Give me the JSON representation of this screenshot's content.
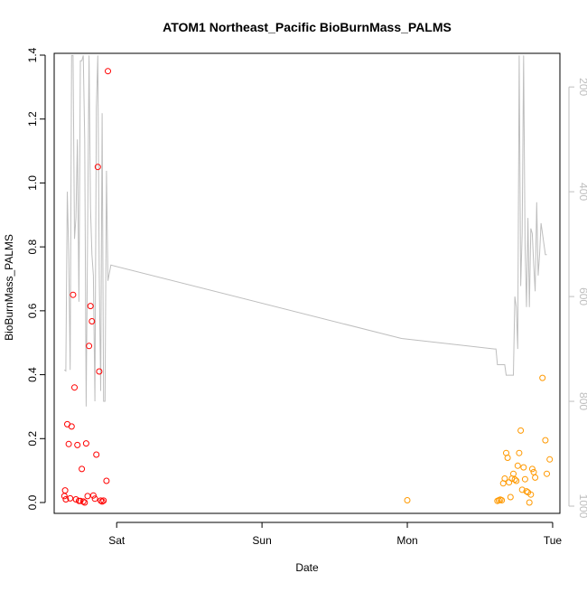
{
  "chart_data": {
    "type": "scatter",
    "title": "ATOM1 Northeast_Pacific BioBurnMass_PALMS",
    "xlabel": "Date",
    "ylabel": "BioBurnMass_PALMS",
    "x_ticks": [
      "Sat",
      "Sun",
      "Mon",
      "Tue"
    ],
    "xlim_days": [
      -0.43,
      3.05
    ],
    "ylim": [
      0,
      1.4
    ],
    "y_ticks": [
      0.0,
      0.2,
      0.4,
      0.6,
      0.8,
      1.0,
      1.2,
      1.4
    ],
    "y2_label_direction": "reversed",
    "y2_ticks": [
      200,
      400,
      600,
      800,
      1000
    ],
    "y2lim": [
      1000,
      160
    ],
    "colors": {
      "series_a": "#ff0000",
      "series_b": "#ff9900",
      "altitude_line": "#bebebe"
    },
    "series": [
      {
        "marker": "circle",
        "color": "#ff0000",
        "points": [
          [
            -0.36,
            0.02
          ],
          [
            -0.355,
            0.038
          ],
          [
            -0.35,
            0.01
          ],
          [
            -0.34,
            0.245
          ],
          [
            -0.33,
            0.183
          ],
          [
            -0.32,
            0.013
          ],
          [
            -0.31,
            0.238
          ],
          [
            -0.3,
            0.65
          ],
          [
            -0.29,
            0.36
          ],
          [
            -0.28,
            0.01
          ],
          [
            -0.27,
            0.18
          ],
          [
            -0.26,
            0.005
          ],
          [
            -0.25,
            0.005
          ],
          [
            -0.24,
            0.105
          ],
          [
            -0.23,
            0.003
          ],
          [
            -0.22,
            0.0
          ],
          [
            -0.21,
            0.185
          ],
          [
            -0.2,
            0.02
          ],
          [
            -0.19,
            0.49
          ],
          [
            -0.18,
            0.615
          ],
          [
            -0.17,
            0.567
          ],
          [
            -0.16,
            0.022
          ],
          [
            -0.15,
            0.012
          ],
          [
            -0.14,
            0.15
          ],
          [
            -0.13,
            1.05
          ],
          [
            -0.12,
            0.41
          ],
          [
            -0.11,
            0.006
          ],
          [
            -0.1,
            0.003
          ],
          [
            -0.09,
            0.006
          ],
          [
            -0.07,
            0.068
          ],
          [
            -0.06,
            1.35
          ]
        ]
      },
      {
        "marker": "circle",
        "color": "#ff9900",
        "points": [
          [
            2.0,
            0.007
          ],
          [
            2.62,
            0.005
          ],
          [
            2.63,
            0.007
          ],
          [
            2.64,
            0.009
          ],
          [
            2.65,
            0.007
          ],
          [
            2.66,
            0.06
          ],
          [
            2.67,
            0.075
          ],
          [
            2.68,
            0.155
          ],
          [
            2.69,
            0.14
          ],
          [
            2.7,
            0.063
          ],
          [
            2.71,
            0.017
          ],
          [
            2.72,
            0.075
          ],
          [
            2.73,
            0.09
          ],
          [
            2.74,
            0.072
          ],
          [
            2.75,
            0.068
          ],
          [
            2.76,
            0.115
          ],
          [
            2.77,
            0.155
          ],
          [
            2.78,
            0.225
          ],
          [
            2.79,
            0.04
          ],
          [
            2.8,
            0.11
          ],
          [
            2.81,
            0.073
          ],
          [
            2.82,
            0.035
          ],
          [
            2.83,
            0.032
          ],
          [
            2.84,
            0.0
          ],
          [
            2.85,
            0.025
          ],
          [
            2.86,
            0.105
          ],
          [
            2.87,
            0.095
          ],
          [
            2.88,
            0.078
          ],
          [
            2.93,
            0.39
          ],
          [
            2.95,
            0.195
          ],
          [
            2.96,
            0.09
          ],
          [
            2.98,
            0.135
          ]
        ]
      }
    ],
    "altitude_line": {
      "axis": "y2",
      "points": [
        [
          -0.36,
          740
        ],
        [
          -0.35,
          742
        ],
        [
          -0.34,
          400
        ],
        [
          -0.33,
          520
        ],
        [
          -0.32,
          740
        ],
        [
          -0.31,
          140
        ],
        [
          -0.3,
          140
        ],
        [
          -0.29,
          490
        ],
        [
          -0.28,
          450
        ],
        [
          -0.27,
          300
        ],
        [
          -0.26,
          610
        ],
        [
          -0.25,
          150
        ],
        [
          -0.24,
          150
        ],
        [
          -0.23,
          140
        ],
        [
          -0.22,
          300
        ],
        [
          -0.21,
          810
        ],
        [
          -0.2,
          480
        ],
        [
          -0.19,
          140
        ],
        [
          -0.18,
          430
        ],
        [
          -0.17,
          520
        ],
        [
          -0.16,
          560
        ],
        [
          -0.15,
          800
        ],
        [
          -0.14,
          240
        ],
        [
          -0.13,
          140
        ],
        [
          -0.12,
          560
        ],
        [
          -0.11,
          780
        ],
        [
          -0.1,
          250
        ],
        [
          -0.09,
          800
        ],
        [
          -0.08,
          800
        ],
        [
          -0.07,
          360
        ],
        [
          -0.06,
          570
        ],
        [
          -0.04,
          540
        ],
        [
          1.96,
          680
        ],
        [
          2.6,
          700
        ],
        [
          2.61,
          700
        ],
        [
          2.62,
          730
        ],
        [
          2.63,
          730
        ],
        [
          2.67,
          730
        ],
        [
          2.68,
          750
        ],
        [
          2.73,
          750
        ],
        [
          2.74,
          600
        ],
        [
          2.75,
          620
        ],
        [
          2.76,
          700
        ],
        [
          2.77,
          140
        ],
        [
          2.78,
          580
        ],
        [
          2.79,
          480
        ],
        [
          2.8,
          140
        ],
        [
          2.81,
          500
        ],
        [
          2.82,
          620
        ],
        [
          2.83,
          450
        ],
        [
          2.84,
          620
        ],
        [
          2.85,
          470
        ],
        [
          2.86,
          480
        ],
        [
          2.87,
          540
        ],
        [
          2.88,
          590
        ],
        [
          2.89,
          420
        ],
        [
          2.9,
          560
        ],
        [
          2.91,
          520
        ],
        [
          2.92,
          460
        ],
        [
          2.94,
          500
        ],
        [
          2.95,
          520
        ],
        [
          2.96,
          520
        ]
      ]
    }
  }
}
